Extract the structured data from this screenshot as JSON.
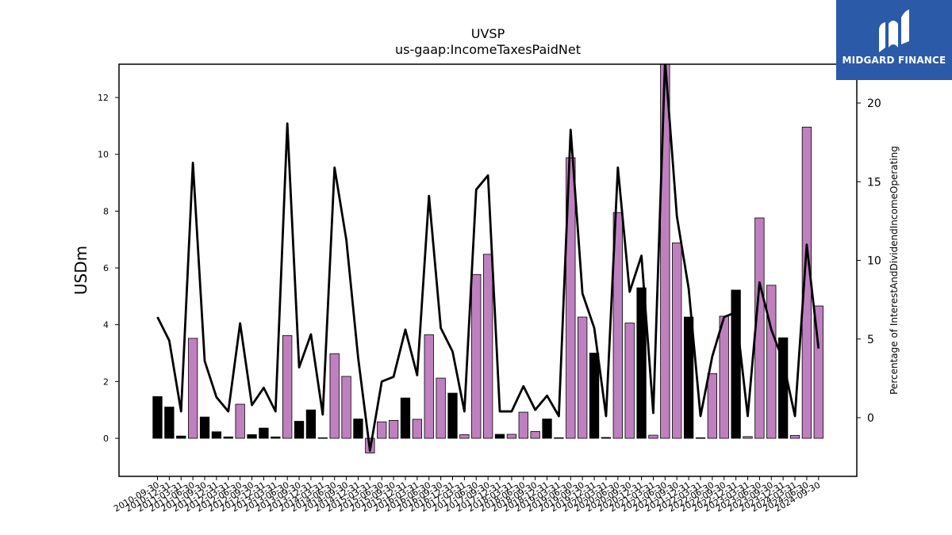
{
  "logo": {
    "text": "MIDGARD FINANCE",
    "icon": "midgard-logo-icon",
    "background": "#2b5aa8"
  },
  "chart_data": {
    "type": "bar",
    "title": "UVSP",
    "subtitle": "us-gaap:IncomeTaxesPaidNet",
    "ylabel": "USDm",
    "y2label": "Percentage of InterestAndDividendIncomeOperating",
    "ylim": [
      -1.3,
      13.2
    ],
    "y2lim": [
      -3.8,
      22.7
    ],
    "yticks": [
      0,
      2,
      4,
      6,
      8,
      10,
      12
    ],
    "y2ticks": [
      0,
      5,
      10,
      15,
      20
    ],
    "grid": false,
    "colors": {
      "q4": "#bf80bf",
      "other": "#000000",
      "line": "#000000"
    },
    "categories": [
      "2010-09-30",
      "2010-12-31",
      "2011-03-31",
      "2011-06-30",
      "2011-09-30",
      "2011-12-31",
      "2012-03-31",
      "2012-06-30",
      "2012-09-30",
      "2012-12-31",
      "2013-03-31",
      "2013-06-30",
      "2013-09-30",
      "2013-12-31",
      "2014-03-31",
      "2014-06-30",
      "2014-09-30",
      "2014-12-31",
      "2015-03-31",
      "2015-06-30",
      "2015-09-30",
      "2015-12-31",
      "2016-03-31",
      "2016-06-30",
      "2016-09-30",
      "2016-12-31",
      "2017-03-31",
      "2017-06-30",
      "2017-09-30",
      "2017-12-31",
      "2018-03-31",
      "2018-06-30",
      "2018-09-30",
      "2018-12-31",
      "2019-03-31",
      "2019-06-30",
      "2019-09-30",
      "2019-12-31",
      "2020-03-31",
      "2020-06-30",
      "2020-09-30",
      "2020-12-31",
      "2021-03-31",
      "2021-06-30",
      "2021-09-30",
      "2021-12-31",
      "2022-03-31",
      "2022-06-30",
      "2022-09-30",
      "2022-12-31",
      "2023-03-31",
      "2023-06-30",
      "2023-09-30",
      "2023-12-31",
      "2024-03-31",
      "2024-06-30",
      "2024-09-30"
    ],
    "tick_labels": [
      "2010-09-30",
      "2010-12-31",
      "2011-03-31",
      "2011-06-30",
      "2011-09-30",
      "2011-12-31",
      "2012-03-31",
      "2012-06-30",
      "2012-09-30",
      "2012-12-31",
      "2013-03-31",
      "2013-06-30",
      "2013-09-30",
      "2013-12-31",
      "2014-03-31",
      "2014-06-30",
      "2014-09-30",
      "2014-12-31",
      "2015-03-31",
      "2015-06-30",
      "2015-09-30",
      "2015-12-31",
      "2016-03-31",
      "2016-06-30",
      "2016-09-30",
      "2016-12-31",
      "2017-03-31",
      "2017-06-30",
      "2017-09-30",
      "2017-12-31",
      "2018-03-31",
      "2018-06-30",
      "2018-09-30",
      "2018-12-31",
      "2019-03-31",
      "2019-06-30",
      "2019-09-30",
      "2019-12-31",
      "2020-03-31",
      "2020-06-30",
      "2020-09-30",
      "2020-12-31",
      "2021-03-31",
      "2021-06-30",
      "2021-09-30",
      "2021-12-31",
      "2022-03-31",
      "2022-06-30",
      "2022-09-30",
      "2022-12-31",
      "2023-03-31",
      "2023-06-30",
      "2023-09-30",
      "2023-12-31",
      "2024-03-31",
      "2024-06-30",
      "2024-09-30"
    ],
    "series": [
      {
        "type": "bar",
        "axis": "left",
        "values": [
          1.47,
          1.1,
          0.08,
          3.52,
          0.75,
          0.23,
          0.05,
          1.2,
          0.13,
          0.36,
          0.05,
          3.62,
          0.6,
          1.0,
          0.02,
          2.98,
          2.18,
          0.68,
          -0.52,
          0.58,
          0.63,
          1.42,
          0.67,
          3.65,
          2.12,
          1.59,
          0.13,
          5.77,
          6.48,
          0.14,
          0.14,
          0.92,
          0.24,
          0.68,
          0.02,
          9.88,
          4.27,
          3.0,
          0.03,
          7.95,
          4.06,
          5.3,
          0.11,
          13.2,
          6.88,
          4.27,
          0.02,
          2.28,
          4.3,
          5.22,
          0.06,
          7.76,
          5.39,
          3.54,
          0.1,
          10.96,
          4.66
        ],
        "highlight": [
          false,
          false,
          false,
          true,
          false,
          false,
          false,
          true,
          false,
          false,
          false,
          true,
          false,
          false,
          false,
          true,
          true,
          false,
          true,
          true,
          true,
          false,
          true,
          true,
          true,
          false,
          true,
          true,
          true,
          false,
          true,
          true,
          true,
          false,
          false,
          true,
          true,
          false,
          false,
          true,
          true,
          false,
          true,
          true,
          true,
          false,
          true,
          true,
          true,
          false,
          true,
          true,
          true,
          false,
          true,
          true,
          true
        ]
      },
      {
        "type": "line",
        "axis": "right",
        "values": [
          6.4,
          4.9,
          0.4,
          16.2,
          3.6,
          1.3,
          0.4,
          6.0,
          0.8,
          1.9,
          0.4,
          18.7,
          3.2,
          5.3,
          0.2,
          15.9,
          11.3,
          3.8,
          -2.1,
          2.3,
          2.6,
          5.6,
          2.7,
          14.1,
          5.7,
          4.2,
          0.4,
          14.5,
          15.4,
          0.4,
          0.4,
          2.0,
          0.5,
          1.4,
          0.1,
          18.3,
          7.9,
          5.7,
          0.1,
          15.9,
          8.0,
          10.3,
          0.3,
          22.7,
          12.8,
          8.2,
          0.1,
          3.9,
          6.4,
          6.7,
          0.1,
          8.6,
          5.6,
          3.6,
          0.1,
          11.0,
          4.4
        ]
      }
    ]
  }
}
